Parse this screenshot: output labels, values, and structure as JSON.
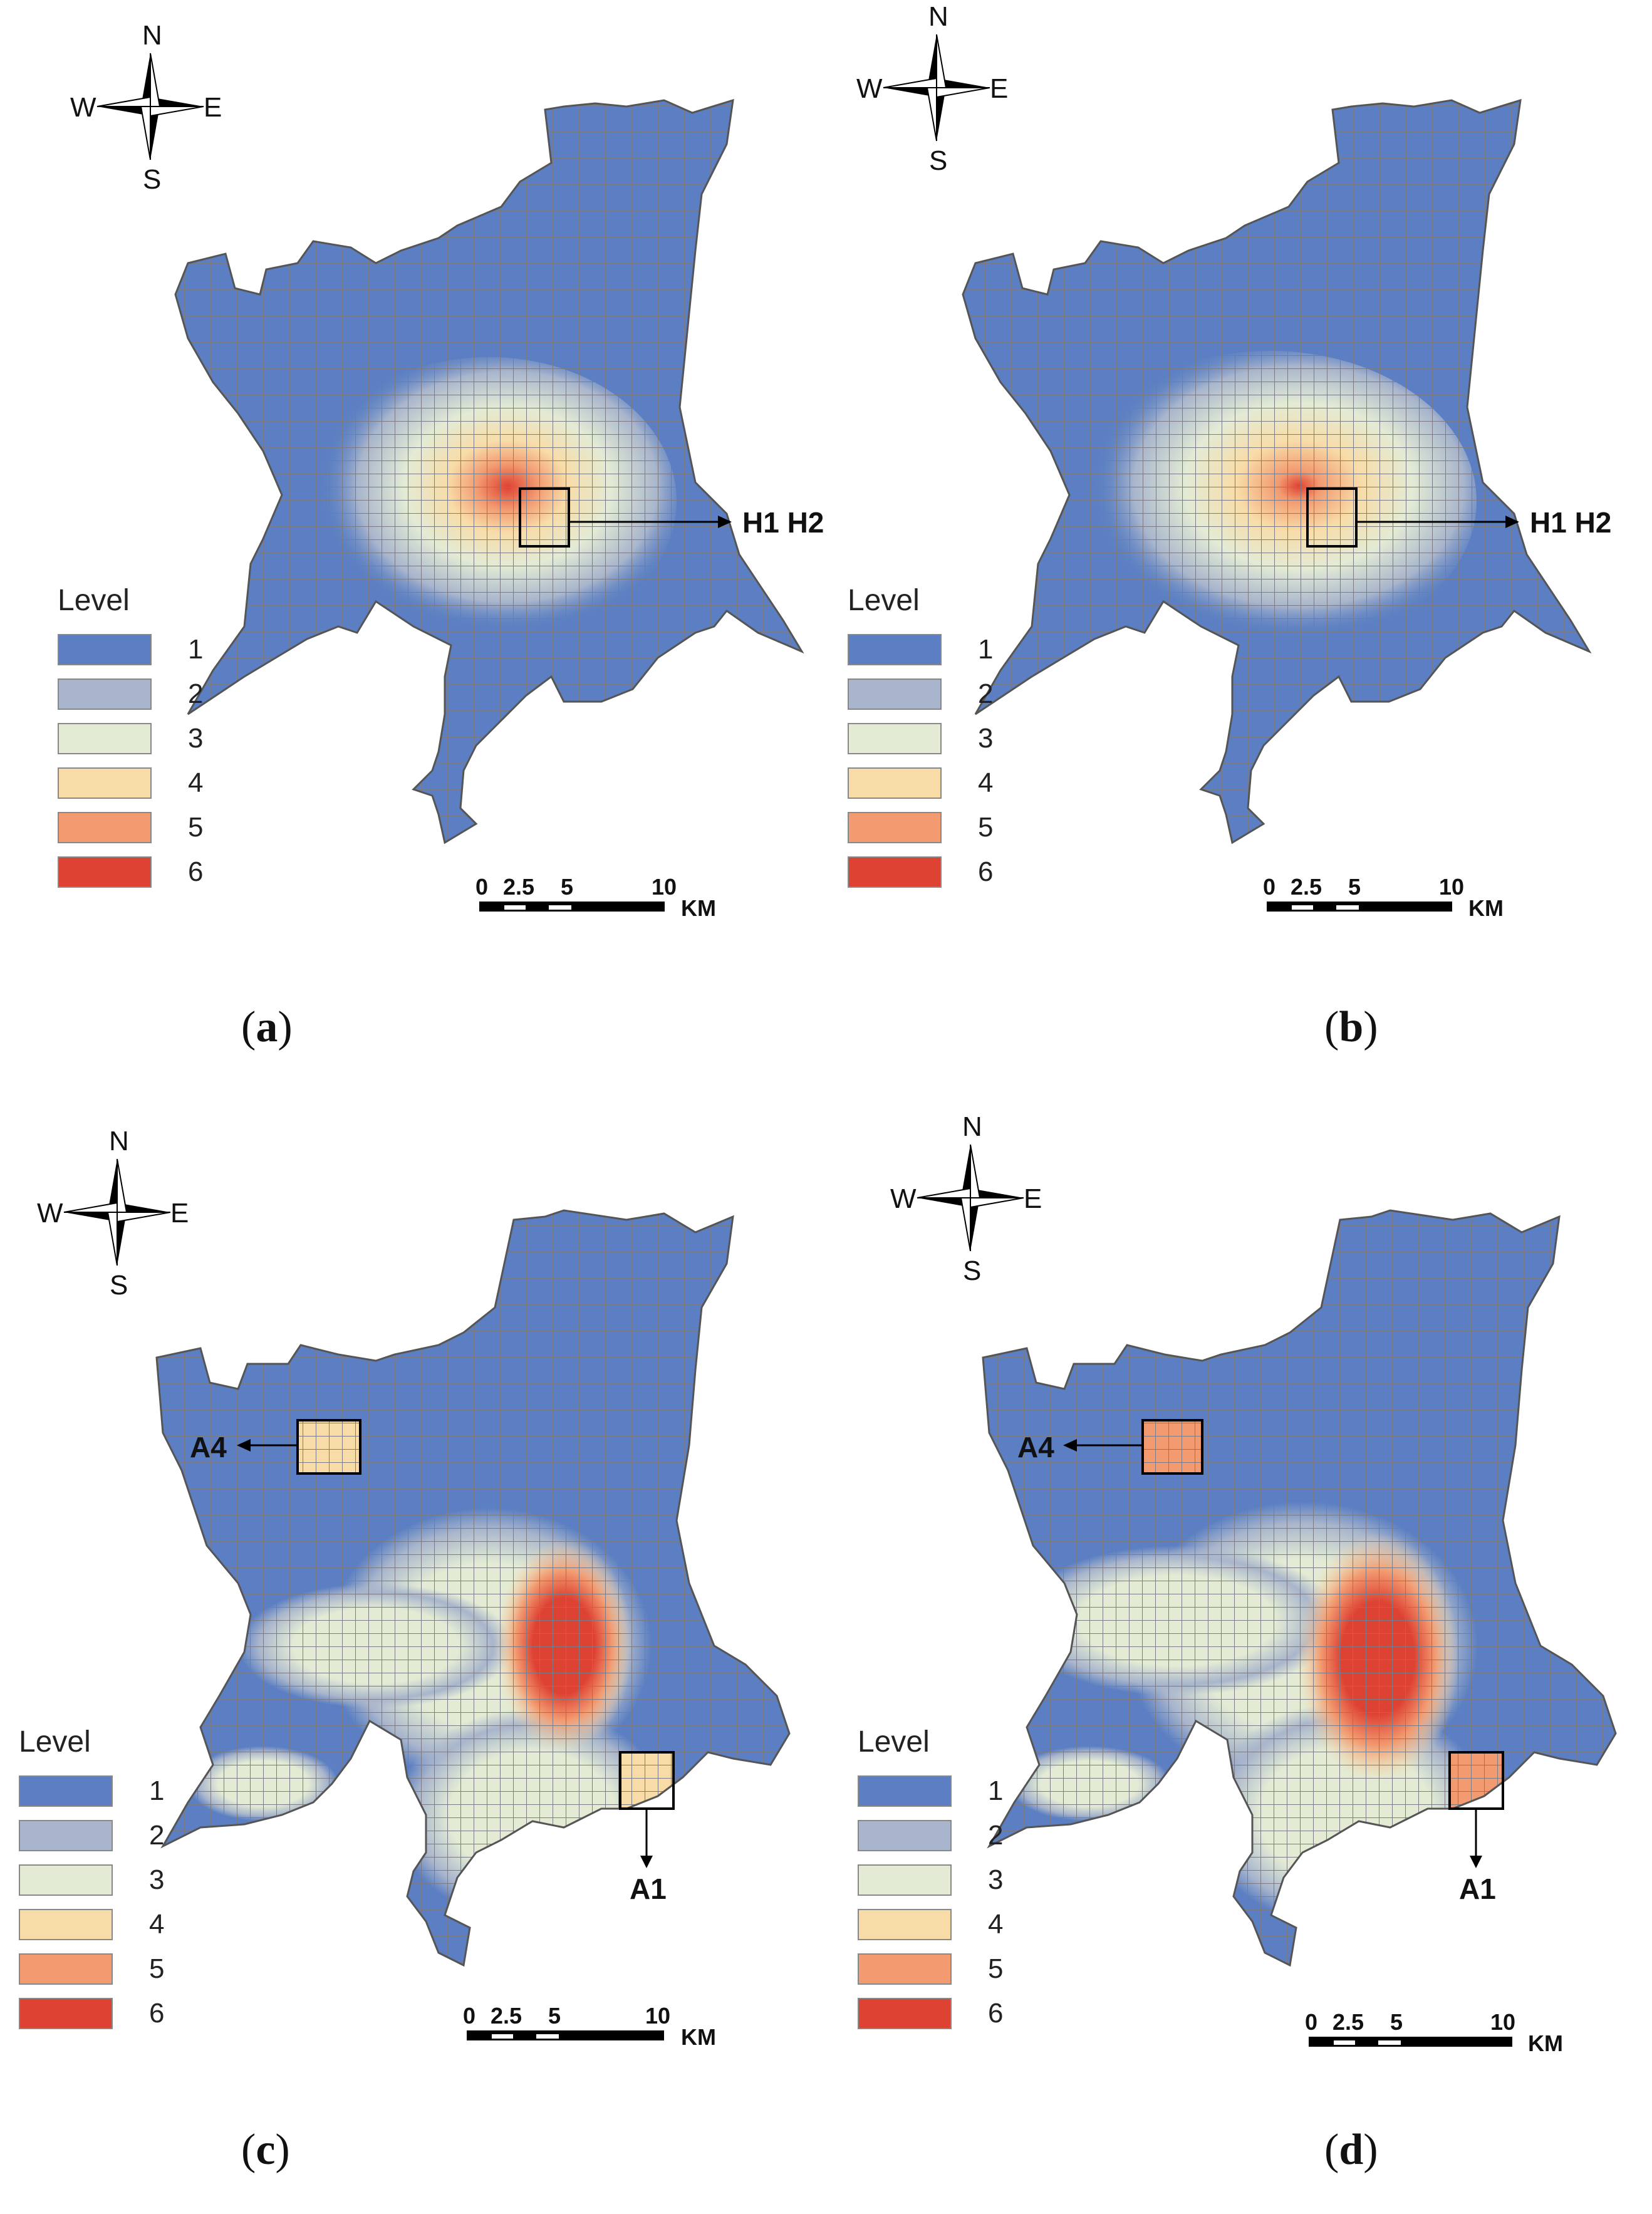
{
  "compass": {
    "n": "N",
    "s": "S",
    "e": "E",
    "w": "W"
  },
  "legend": {
    "title": "Level",
    "levels": [
      {
        "label": "1",
        "color": "#5b7fc2"
      },
      {
        "label": "2",
        "color": "#a8b5cc"
      },
      {
        "label": "3",
        "color": "#e3ebd5"
      },
      {
        "label": "4",
        "color": "#f8dca8"
      },
      {
        "label": "5",
        "color": "#f29a70"
      },
      {
        "label": "6",
        "color": "#de4233"
      }
    ]
  },
  "scale": {
    "t0": "0",
    "t1": "2.5",
    "t2": "5",
    "t3": "10",
    "unit": "KM"
  },
  "panels": [
    {
      "id": "a",
      "label_open": "(",
      "label_letter": "a",
      "label_close": ")",
      "callout": "H1 H2"
    },
    {
      "id": "b",
      "label_open": "(",
      "label_letter": "b",
      "label_close": ")",
      "callout": "H1 H2"
    },
    {
      "id": "c",
      "label_open": "(",
      "label_letter": "c",
      "label_close": ")",
      "callout_a4": "A4",
      "callout_a1": "A1"
    },
    {
      "id": "d",
      "label_open": "(",
      "label_letter": "d",
      "label_close": ")",
      "callout_a4": "A4",
      "callout_a1": "A1"
    }
  ],
  "colors": {
    "grid": "#7b7b86",
    "outline": "#555555"
  }
}
